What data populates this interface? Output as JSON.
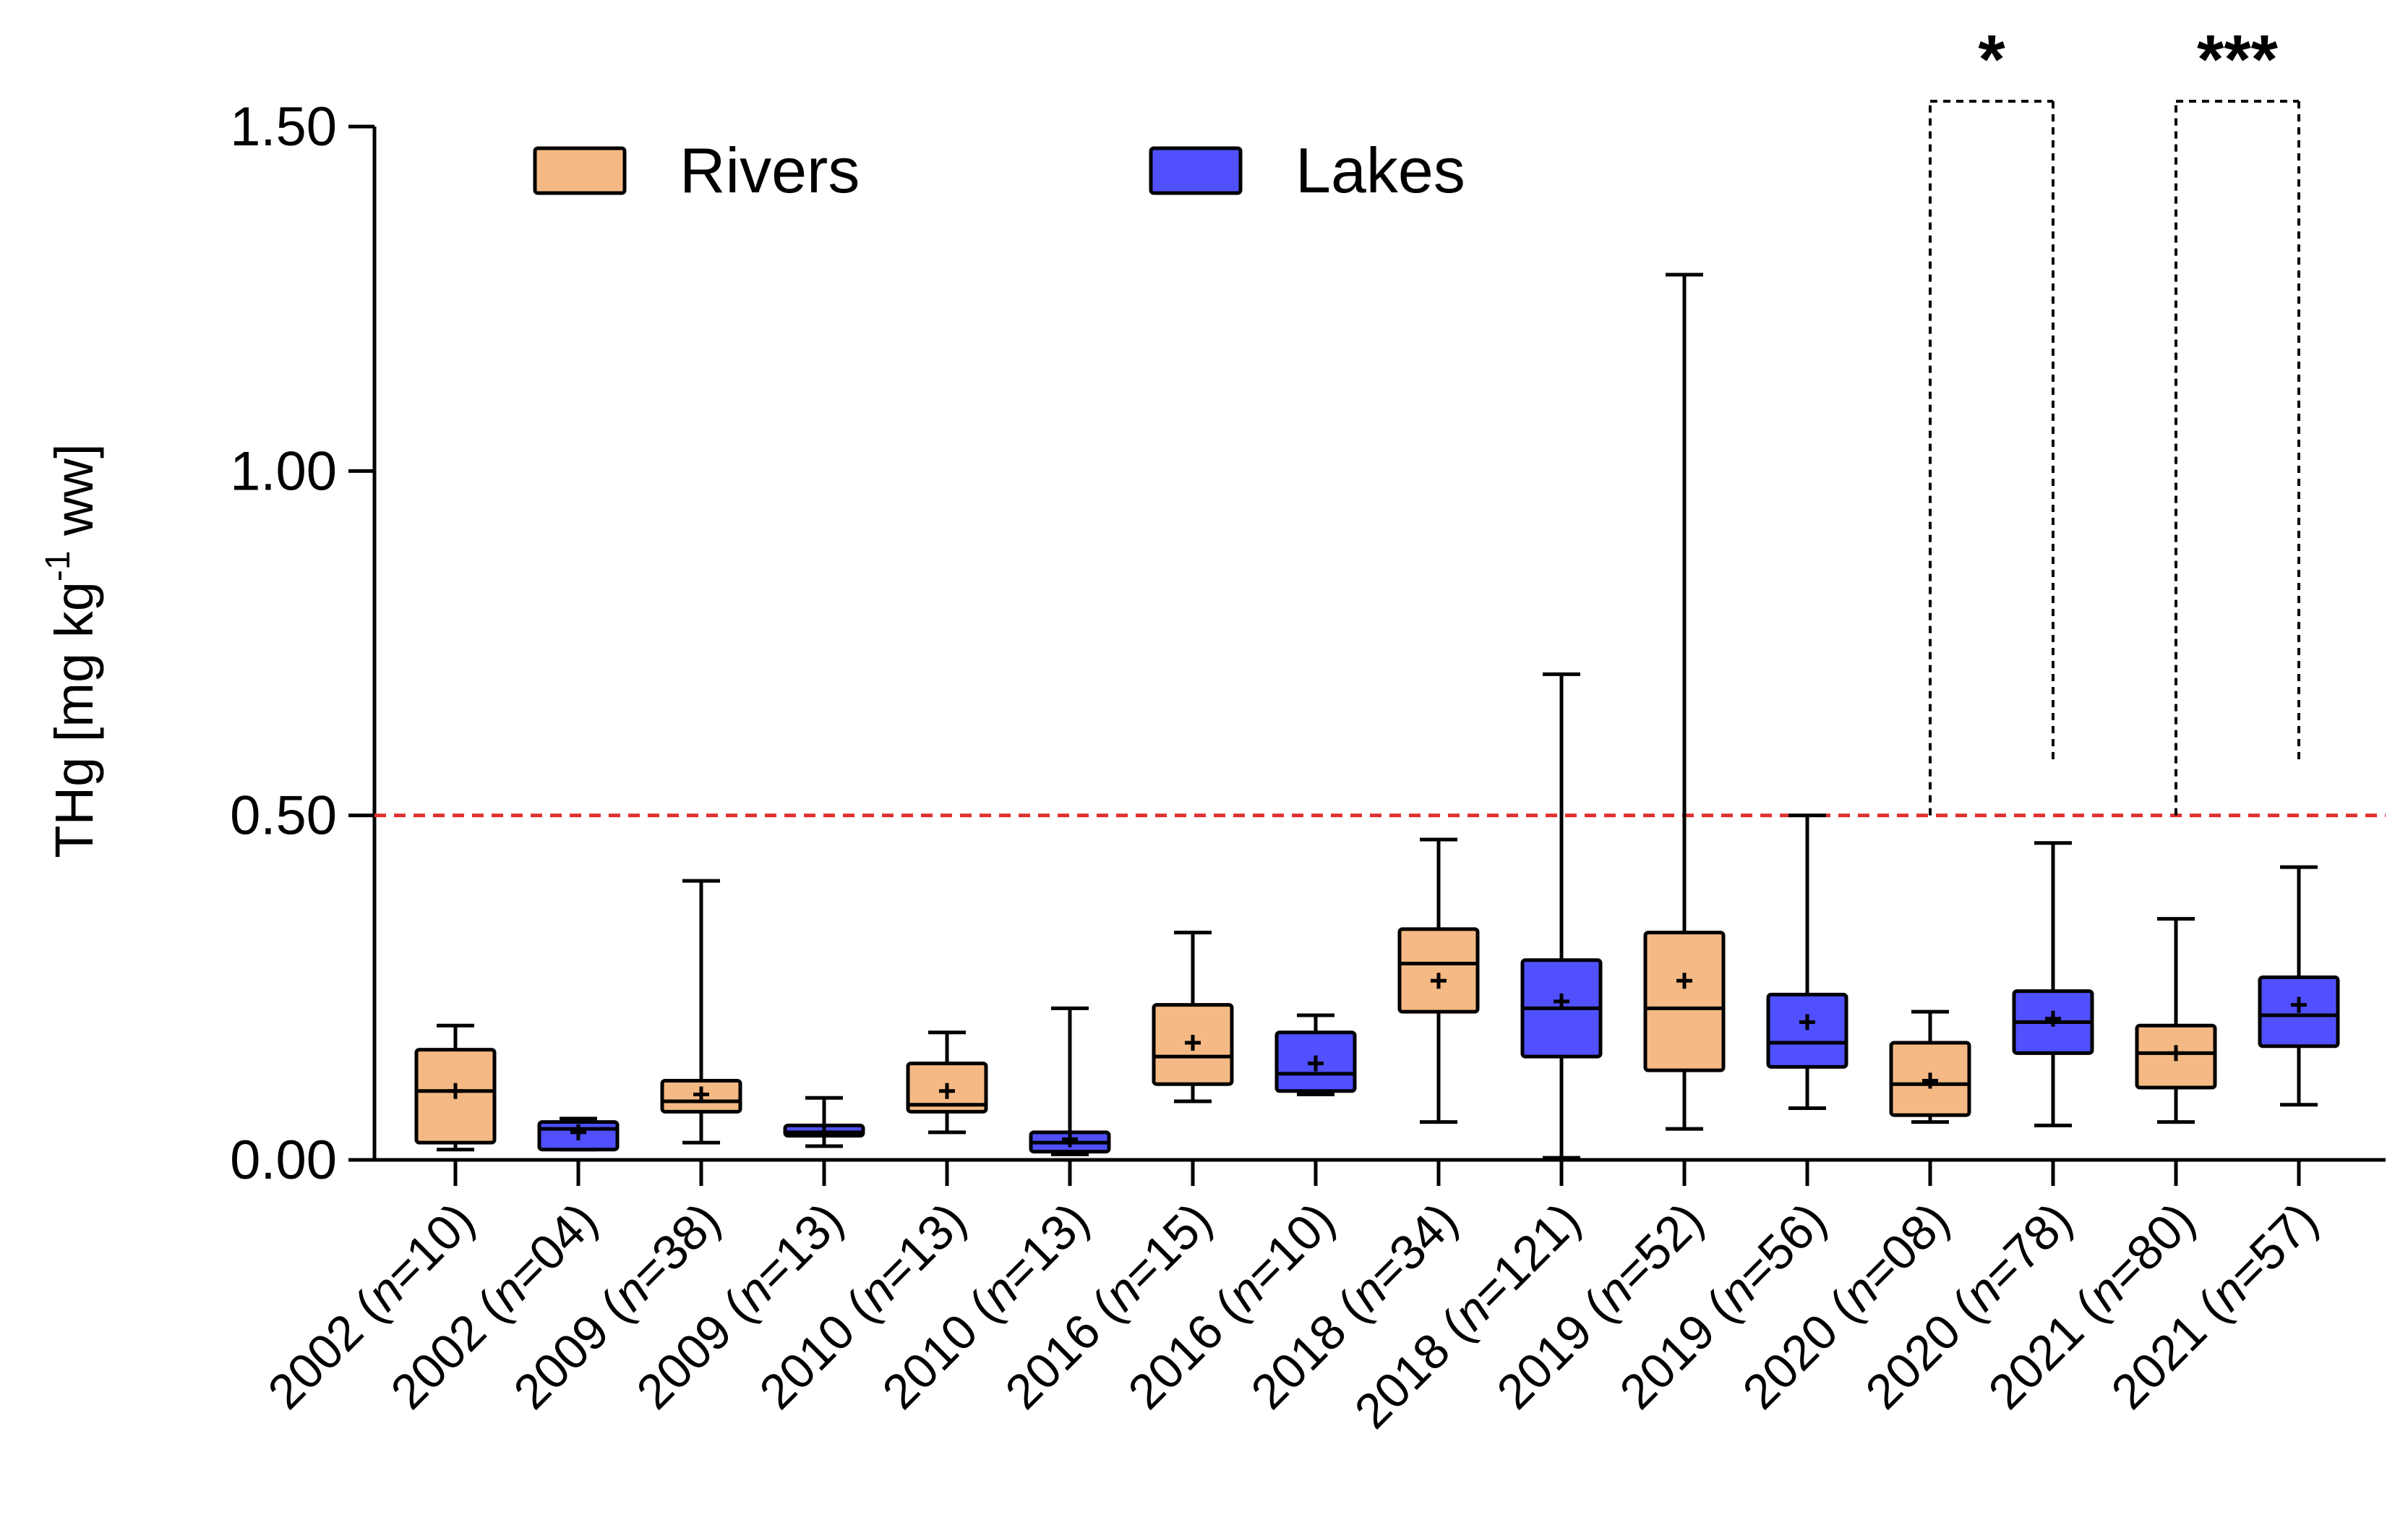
{
  "chart_data": {
    "type": "box",
    "ylabel": "THg [mg kg",
    "ylabel_sup": "-1",
    "ylabel_tail": " ww]",
    "ylim": [
      0,
      1.5
    ],
    "yticks": [
      "0.00",
      "0.50",
      "1.00",
      "1.50"
    ],
    "ytick_values": [
      0,
      0.5,
      1.0,
      1.5
    ],
    "reference_line": {
      "value": 0.5,
      "color": "#e03030",
      "style": "dashed"
    },
    "legend_placement": "top-left",
    "series": [
      {
        "name": "Rivers",
        "color": "#f4b984"
      },
      {
        "name": "Lakes",
        "color": "#5050ff"
      }
    ],
    "boxes": [
      {
        "year": "2002",
        "n": "10",
        "group": "Rivers",
        "min": 0.015,
        "q1": 0.025,
        "median": 0.1,
        "q3": 0.16,
        "max": 0.195,
        "mean": 0.1
      },
      {
        "year": "2002",
        "n": "04",
        "group": "Lakes",
        "min": 0.015,
        "q1": 0.015,
        "median": 0.045,
        "q3": 0.055,
        "max": 0.06,
        "mean": 0.04
      },
      {
        "year": "2009",
        "n": "38",
        "group": "Rivers",
        "min": 0.025,
        "q1": 0.07,
        "median": 0.085,
        "q3": 0.115,
        "max": 0.405,
        "mean": 0.095
      },
      {
        "year": "2009",
        "n": "13",
        "group": "Lakes",
        "min": 0.02,
        "q1": 0.035,
        "median": 0.04,
        "q3": 0.05,
        "max": 0.09,
        "mean": 0.04
      },
      {
        "year": "2010",
        "n": "13",
        "group": "Rivers",
        "min": 0.04,
        "q1": 0.07,
        "median": 0.08,
        "q3": 0.14,
        "max": 0.185,
        "mean": 0.1
      },
      {
        "year": "2010",
        "n": "13",
        "group": "Lakes",
        "min": 0.008,
        "q1": 0.012,
        "median": 0.025,
        "q3": 0.04,
        "max": 0.22,
        "mean": 0.03
      },
      {
        "year": "2016",
        "n": "15",
        "group": "Rivers",
        "min": 0.085,
        "q1": 0.11,
        "median": 0.15,
        "q3": 0.225,
        "max": 0.33,
        "mean": 0.17
      },
      {
        "year": "2016",
        "n": "10",
        "group": "Lakes",
        "min": 0.095,
        "q1": 0.1,
        "median": 0.125,
        "q3": 0.185,
        "max": 0.21,
        "mean": 0.14
      },
      {
        "year": "2018",
        "n": "34",
        "group": "Rivers",
        "min": 0.055,
        "q1": 0.215,
        "median": 0.285,
        "q3": 0.335,
        "max": 0.465,
        "mean": 0.26
      },
      {
        "year": "2018",
        "n": "121",
        "group": "Lakes",
        "min": 0.003,
        "q1": 0.15,
        "median": 0.22,
        "q3": 0.29,
        "max": 0.705,
        "mean": 0.23
      },
      {
        "year": "2019",
        "n": "52",
        "group": "Rivers",
        "min": 0.045,
        "q1": 0.13,
        "median": 0.22,
        "q3": 0.33,
        "max": 1.285,
        "mean": 0.26
      },
      {
        "year": "2019",
        "n": "56",
        "group": "Lakes",
        "min": 0.075,
        "q1": 0.135,
        "median": 0.17,
        "q3": 0.24,
        "max": 0.5,
        "mean": 0.2
      },
      {
        "year": "2020",
        "n": "08",
        "group": "Rivers",
        "min": 0.055,
        "q1": 0.065,
        "median": 0.11,
        "q3": 0.17,
        "max": 0.215,
        "mean": 0.115
      },
      {
        "year": "2020",
        "n": "78",
        "group": "Lakes",
        "min": 0.05,
        "q1": 0.155,
        "median": 0.2,
        "q3": 0.245,
        "max": 0.46,
        "mean": 0.205
      },
      {
        "year": "2021",
        "n": "80",
        "group": "Rivers",
        "min": 0.055,
        "q1": 0.105,
        "median": 0.155,
        "q3": 0.195,
        "max": 0.35,
        "mean": 0.155
      },
      {
        "year": "2021",
        "n": "57",
        "group": "Lakes",
        "min": 0.08,
        "q1": 0.165,
        "median": 0.21,
        "q3": 0.265,
        "max": 0.425,
        "mean": 0.225
      }
    ],
    "significance": [
      {
        "between": [
          12,
          13
        ],
        "label": "*"
      },
      {
        "between": [
          14,
          15
        ],
        "label": "***"
      }
    ]
  }
}
